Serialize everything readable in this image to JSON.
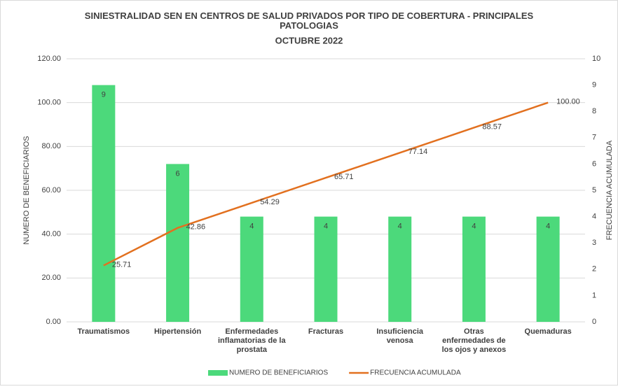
{
  "chart_data": {
    "type": "bar-line",
    "title": "SINIESTRALIDAD SEN EN CENTROS DE SALUD PRIVADOS POR TIPO DE COBERTURA - PRINCIPALES PATOLOGIAS",
    "subtitle": "OCTUBRE 2022",
    "y_label": "NUMERO DE BENEFICIARIOS",
    "y2_label": "FRECUENCIA ACUMULADA",
    "categories": [
      "Traumatismos",
      "Hipertensión",
      "Enfermedades inflamatorias de la prostata",
      "Fracturas",
      "Insuficiencia venosa",
      "Otras enfermedades de los ojos y anexos",
      "Quemaduras"
    ],
    "series": [
      {
        "name": "NUMERO DE BENEFICIARIOS",
        "type": "bar",
        "axis": "y2",
        "color": "#4cd97b",
        "values": [
          9,
          6,
          4,
          4,
          4,
          4,
          4
        ]
      },
      {
        "name": "FRECUENCIA ACUMULADA",
        "type": "line",
        "axis": "y",
        "color": "#e2701f",
        "values": [
          25.71,
          42.86,
          54.29,
          65.71,
          77.14,
          88.57,
          100
        ],
        "value_labels": [
          "25.71",
          "42.86",
          "54.29",
          "65.71",
          "77.14",
          "88.57",
          "100.00"
        ]
      }
    ],
    "ylim": [
      0,
      120
    ],
    "yticks": [
      {
        "value": 0,
        "label": "0.00"
      },
      {
        "value": 20,
        "label": "20.00"
      },
      {
        "value": 40,
        "label": "40.00"
      },
      {
        "value": 60,
        "label": "60.00"
      },
      {
        "value": 80,
        "label": "80.00"
      },
      {
        "value": 100,
        "label": "100.00"
      },
      {
        "value": 120,
        "label": "120.00"
      }
    ],
    "y2lim": [
      0,
      10
    ],
    "y2ticks": [
      0,
      1,
      2,
      3,
      4,
      5,
      6,
      7,
      8,
      9,
      10
    ],
    "legend": "bottom"
  }
}
